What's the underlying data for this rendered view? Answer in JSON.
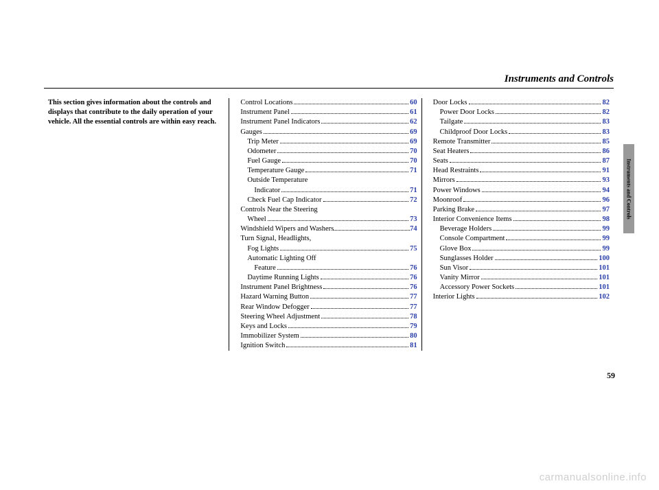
{
  "header": {
    "title": "Instruments and Controls",
    "side_tab": "Instruments and Controls",
    "page_number": "59",
    "watermark": "carmanualsonline.info",
    "link_color": "#2a3ea8",
    "tab_bg": "#999999"
  },
  "intro": "This section gives information about the controls and displays that contribute to the daily operation of your vehicle. All the essential controls are within easy reach.",
  "col2": [
    {
      "label": "Control Locations",
      "page": "60",
      "ind": 0
    },
    {
      "label": "Instrument Panel",
      "page": "61",
      "ind": 0
    },
    {
      "label": "Instrument Panel Indicators",
      "page": "62",
      "ind": 0
    },
    {
      "label": "Gauges",
      "page": "69",
      "ind": 0
    },
    {
      "label": "Trip Meter",
      "page": "69",
      "ind": 1
    },
    {
      "label": "Odometer",
      "page": "70",
      "ind": 1
    },
    {
      "label": "Fuel Gauge",
      "page": "70",
      "ind": 1
    },
    {
      "label": "Temperature Gauge",
      "page": "71",
      "ind": 1
    },
    {
      "label": "Outside Temperature",
      "page": "",
      "ind": 1
    },
    {
      "label": "Indicator",
      "page": "71",
      "ind": 2
    },
    {
      "label": "Check Fuel Cap Indicator",
      "page": "72",
      "ind": 1
    },
    {
      "label": "Controls Near the Steering",
      "page": "",
      "ind": 0
    },
    {
      "label": "Wheel",
      "page": "73",
      "ind": 1
    },
    {
      "label": "Windshield Wipers and Washers",
      "page": "74",
      "ind": 0,
      "tight": true
    },
    {
      "label": "Turn Signal, Headlights,",
      "page": "",
      "ind": 0
    },
    {
      "label": "Fog Lights",
      "page": "75",
      "ind": 1
    },
    {
      "label": "Automatic Lighting Off",
      "page": "",
      "ind": 1
    },
    {
      "label": "Feature",
      "page": "76",
      "ind": 2
    },
    {
      "label": "Daytime Running Lights",
      "page": "76",
      "ind": 1
    },
    {
      "label": "Instrument Panel Brightness",
      "page": "76",
      "ind": 0
    },
    {
      "label": "Hazard Warning Button",
      "page": "77",
      "ind": 0
    },
    {
      "label": "Rear Window Defogger",
      "page": "77",
      "ind": 0
    },
    {
      "label": "Steering Wheel Adjustment",
      "page": "78",
      "ind": 0
    },
    {
      "label": "Keys and Locks",
      "page": "79",
      "ind": 0
    },
    {
      "label": "Immobilizer System",
      "page": "80",
      "ind": 0
    },
    {
      "label": "Ignition Switch",
      "page": "81",
      "ind": 0
    }
  ],
  "col3": [
    {
      "label": "Door Locks",
      "page": "82",
      "ind": 0
    },
    {
      "label": "Power Door Locks",
      "page": "82",
      "ind": 1
    },
    {
      "label": "Tailgate",
      "page": "83",
      "ind": 1
    },
    {
      "label": "Childproof Door Locks",
      "page": "83",
      "ind": 1
    },
    {
      "label": "Remote Transmitter",
      "page": "85",
      "ind": 0
    },
    {
      "label": "Seat Heaters",
      "page": "86",
      "ind": 0
    },
    {
      "label": "Seats",
      "page": "87",
      "ind": 0
    },
    {
      "label": "Head Restraints",
      "page": "91",
      "ind": 0
    },
    {
      "label": "Mirrors",
      "page": "93",
      "ind": 0
    },
    {
      "label": "Power Windows",
      "page": "94",
      "ind": 0
    },
    {
      "label": "Moonroof",
      "page": "96",
      "ind": 0
    },
    {
      "label": "Parking Brake",
      "page": "97",
      "ind": 0
    },
    {
      "label": "Interior Convenience Items",
      "page": "98",
      "ind": 0
    },
    {
      "label": "Beverage Holders",
      "page": "99",
      "ind": 1
    },
    {
      "label": "Console Compartment",
      "page": "99",
      "ind": 1
    },
    {
      "label": "Glove Box",
      "page": "99",
      "ind": 1
    },
    {
      "label": "Sunglasses Holder",
      "page": "100",
      "ind": 1
    },
    {
      "label": "Sun Visor",
      "page": "101",
      "ind": 1
    },
    {
      "label": "Vanity Mirror",
      "page": "101",
      "ind": 1
    },
    {
      "label": "Accessory Power Sockets",
      "page": "101",
      "ind": 1
    },
    {
      "label": "Interior Lights",
      "page": "102",
      "ind": 0
    }
  ]
}
